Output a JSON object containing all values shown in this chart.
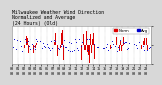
{
  "title": "Milwaukee Weather Wind Direction\nNormalized and Average\n(24 Hours) (Old)",
  "title_fontsize": 3.5,
  "background_color": "#d8d8d8",
  "plot_bg_color": "#ffffff",
  "ylim": [
    -180,
    180
  ],
  "ytick_labels": [
    "",
    "1",
    "",
    "1",
    ""
  ],
  "ylabel_fontsize": 3.0,
  "xlabel_fontsize": 2.5,
  "bar_color": "#dd0000",
  "line_color": "#0000cc",
  "legend_labels": [
    "Norm",
    "Avg"
  ],
  "legend_colors": [
    "#dd0000",
    "#0000cc"
  ],
  "n_points": 144,
  "seed": 42,
  "figsize": [
    1.6,
    0.87
  ],
  "dpi": 100
}
